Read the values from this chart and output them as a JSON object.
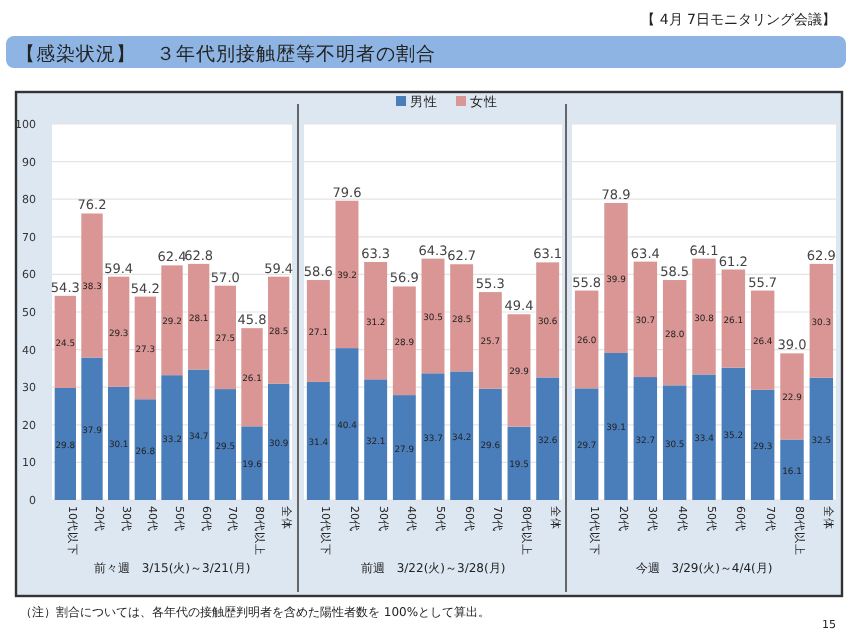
{
  "chart_data": [
    {
      "type": "bar",
      "stacked": true,
      "title": "【感染状況】　３年代別接触歴等不明者の割合",
      "xlabel": "前々週　3/15(火)～3/21(月)",
      "annotations": [
        "（注）割合については、各年代の接触歴判明者を含めた陽性者数を 100%として算出。",
        "15"
      ],
      "categories": [
        "10代以下",
        "20代",
        "30代",
        "40代",
        "50代",
        "60代",
        "70代",
        "80代以上",
        "全体"
      ],
      "series": [
        {
          "name": "男性",
          "color": "#4a7ebb",
          "values": [
            29.8,
            37.9,
            30.1,
            26.8,
            33.2,
            34.7,
            29.5,
            19.6,
            30.9
          ]
        },
        {
          "name": "女性",
          "color": "#d99694",
          "values": [
            24.5,
            38.3,
            29.3,
            27.3,
            29.2,
            28.1,
            27.5,
            26.1,
            28.5
          ]
        }
      ],
      "totals": [
        "54.3",
        "76.2",
        "59.4",
        "54.2",
        "62.4",
        "62.8",
        "57.0",
        "45.8",
        "59.4"
      ],
      "data_labels": true,
      "ylim": [
        0,
        100
      ],
      "yticks": [
        0,
        10,
        20,
        30,
        40,
        50,
        60,
        70,
        80,
        90,
        100
      ],
      "grid": "y",
      "legend": "top"
    },
    {
      "type": "bar",
      "stacked": true,
      "xlabel": "前週　3/22(火)～3/28(月)",
      "categories": [
        "10代以下",
        "20代",
        "30代",
        "40代",
        "50代",
        "60代",
        "70代",
        "80代以上",
        "全体"
      ],
      "series": [
        {
          "color": "#4a7ebb",
          "values": [
            31.4,
            40.4,
            32.1,
            27.9,
            33.7,
            34.2,
            29.6,
            19.5,
            32.6
          ]
        },
        {
          "color": "#d99694",
          "values": [
            27.1,
            39.2,
            31.2,
            28.9,
            30.5,
            28.5,
            25.7,
            29.9,
            30.6
          ]
        }
      ],
      "totals": [
        "58.6",
        "79.6",
        "63.3",
        "56.9",
        "64.3",
        "62.7",
        "55.3",
        "49.4",
        "63.1"
      ],
      "data_labels": true,
      "ylim": [
        0,
        100
      ],
      "yticks": [
        0,
        10,
        20,
        30,
        40,
        50,
        60,
        70,
        80,
        90,
        100
      ],
      "grid": "y",
      "tick_labels": "x"
    },
    {
      "type": "bar",
      "stacked": true,
      "subtitle": "【 4月 7日モニタリング会議】",
      "xlabel": "今週　3/29(火)～4/4(月)",
      "categories": [
        "10代以下",
        "20代",
        "30代",
        "40代",
        "50代",
        "60代",
        "70代",
        "80代以上",
        "全体"
      ],
      "series": [
        {
          "color": "#4a7ebb",
          "values": [
            29.7,
            39.1,
            32.7,
            30.5,
            33.4,
            35.2,
            29.3,
            16.1,
            32.5
          ],
          "value_labels": [
            "29.7",
            "39.1",
            "32.7",
            "30.5",
            "33.4",
            "35.2",
            "29.3",
            "16.1",
            "32.5"
          ]
        },
        {
          "color": "#d99694",
          "values": [
            26.0,
            39.9,
            30.7,
            28.0,
            30.8,
            26.1,
            26.4,
            22.9,
            30.3
          ],
          "value_labels": [
            "26.0",
            "39.9",
            "30.7",
            "28.0",
            "30.8",
            "26.1",
            "26.4",
            "22.9",
            "30.3"
          ]
        }
      ],
      "totals": [
        "55.8",
        "78.9",
        "63.4",
        "58.5",
        "64.1",
        "61.2",
        "55.7",
        "39.0",
        "62.9"
      ],
      "ylim": [
        0,
        100
      ],
      "yticks": [
        0,
        10,
        20,
        30,
        40,
        50,
        60,
        70,
        80,
        90,
        100
      ],
      "grid": "y",
      "tick_labels": "x"
    }
  ]
}
